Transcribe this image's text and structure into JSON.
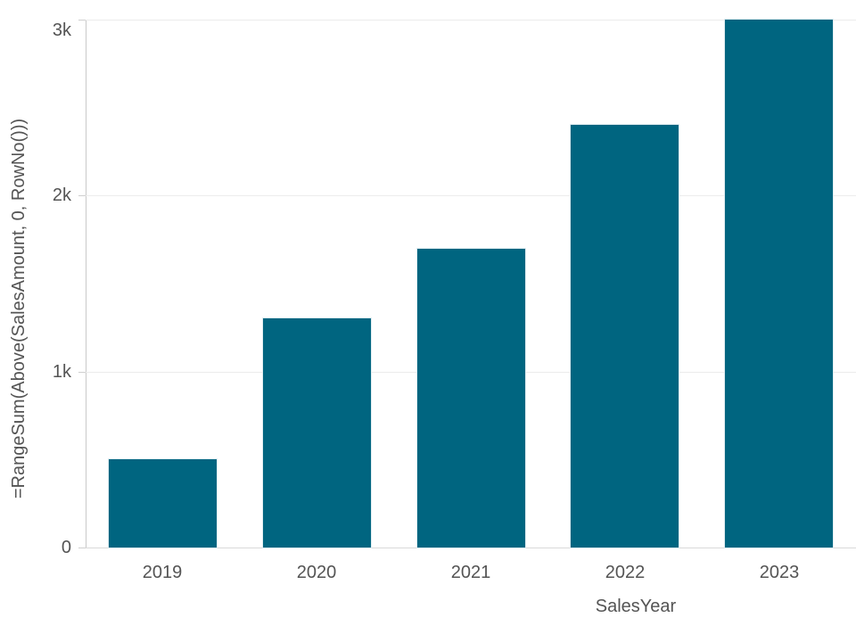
{
  "chart_data": {
    "type": "bar",
    "title": "",
    "categories": [
      "2019",
      "2020",
      "2021",
      "2022",
      "2023"
    ],
    "values": [
      500,
      1300,
      1700,
      2400,
      3000
    ],
    "xlabel": "SalesYear",
    "ylabel": "=RangeSum(Above(SalesAmount, 0, RowNo()))",
    "ylim": [
      0,
      3000
    ],
    "yticks": [
      {
        "value": 0,
        "label": "0"
      },
      {
        "value": 1000,
        "label": "1k"
      },
      {
        "value": 2000,
        "label": "2k"
      },
      {
        "value": 3000,
        "label": "3k"
      }
    ],
    "grid": true,
    "legend": false,
    "colors": {
      "bar": "#006580",
      "axis_line": "#c9c9c9",
      "gridline": "#ececec",
      "baseline": "#d9d9d9",
      "text": "#545454"
    }
  }
}
